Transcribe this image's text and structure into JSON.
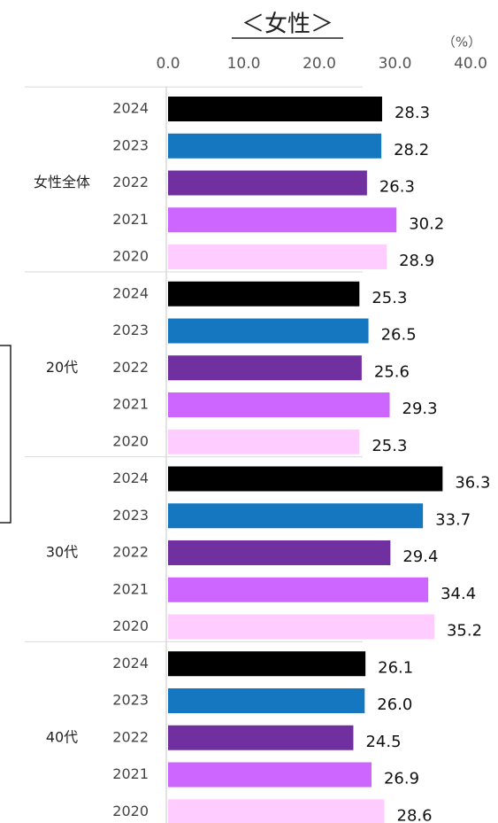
{
  "chart_data": {
    "type": "hbar",
    "title": "＜女性＞",
    "unit": "（%）",
    "categories": [
      "女性全体",
      "20代",
      "30代",
      "40代"
    ],
    "series": [
      {
        "name": "2024",
        "color": "#000000",
        "values": [
          28.3,
          25.3,
          36.3,
          26.1
        ]
      },
      {
        "name": "2023",
        "color": "#1477c0",
        "values": [
          28.2,
          26.5,
          33.7,
          26
        ],
        "value_labels": [
          "28.2",
          "26.5",
          "33.7",
          "26.0"
        ]
      },
      {
        "name": "2022",
        "color": "#7030a0",
        "values": [
          26.3,
          25.6,
          29.4,
          24.5
        ]
      },
      {
        "name": "2021",
        "color": "#cc66ff",
        "values": [
          30.2,
          29.3,
          34.4,
          26.9
        ]
      },
      {
        "name": "2020",
        "color": "#ffccff",
        "values": [
          28.9,
          25.3,
          35.2,
          28.6
        ]
      }
    ],
    "xlim": [
      0,
      40
    ],
    "xticks": [
      {
        "value": 0,
        "label": "0.0"
      },
      {
        "value": 10,
        "label": "10.0"
      },
      {
        "value": 20,
        "label": "20.0"
      },
      {
        "value": 30,
        "label": "30.0"
      },
      {
        "value": 40,
        "label": "40.0"
      }
    ]
  }
}
